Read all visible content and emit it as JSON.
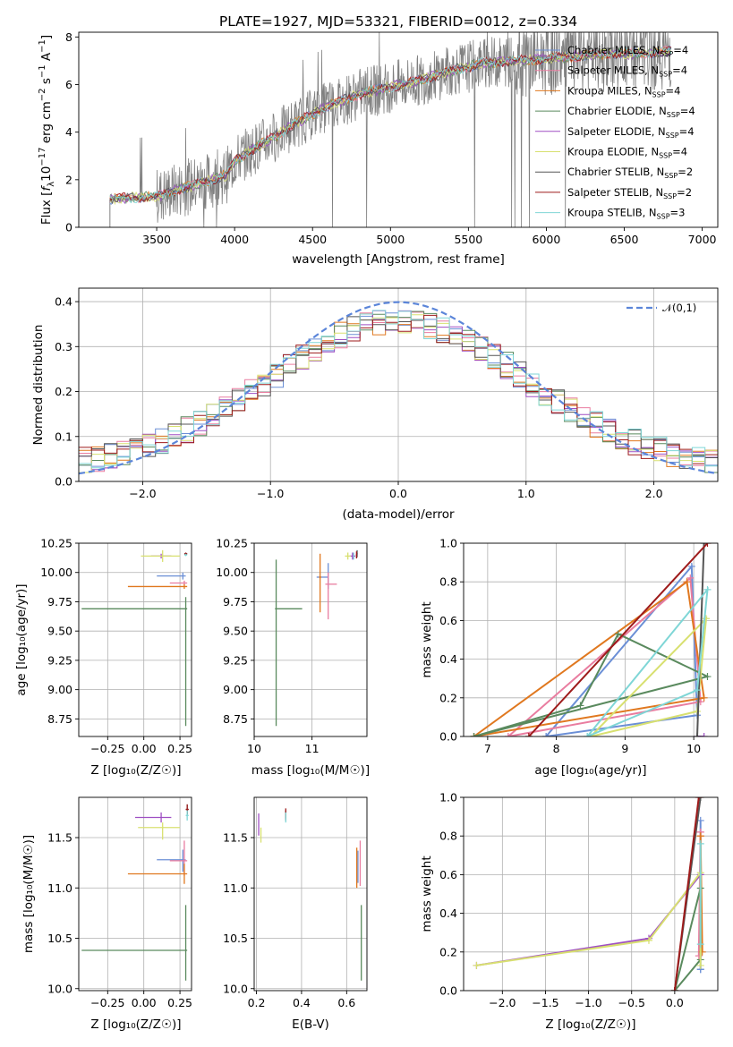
{
  "figure": {
    "title": "PLATE=1927, MJD=53321, FIBERID=0012, z=0.334"
  },
  "legend_models": [
    {
      "name": "Chabrier MILES",
      "nssp": "4",
      "color": "#6b8fd6"
    },
    {
      "name": "Salpeter MILES",
      "nssp": "4",
      "color": "#e97da0"
    },
    {
      "name": "Kroupa MILES",
      "nssp": "4",
      "color": "#e0781f"
    },
    {
      "name": "Chabrier ELODIE",
      "nssp": "4",
      "color": "#5a8a5e"
    },
    {
      "name": "Salpeter ELODIE",
      "nssp": "4",
      "color": "#9f4fc3"
    },
    {
      "name": "Kroupa ELODIE",
      "nssp": "4",
      "color": "#d8e070"
    },
    {
      "name": "Chabrier STELIB",
      "nssp": "2",
      "color": "#555555"
    },
    {
      "name": "Salpeter STELIB",
      "nssp": "2",
      "color": "#9e1b1b"
    },
    {
      "name": "Kroupa STELIB",
      "nssp": "3",
      "color": "#7fd6d6"
    }
  ],
  "chart_data": [
    {
      "id": "spectrum",
      "type": "line",
      "xlabel": "wavelength [Angstrom, rest frame]",
      "ylabel": "Flux [f_λ 10^-17 erg cm^-2 s^-1 A^-1]",
      "xlim": [
        3000,
        7100
      ],
      "ylim": [
        0,
        8.2
      ],
      "xticks": [
        3500,
        4000,
        4500,
        5000,
        5500,
        6000,
        6500,
        7000
      ],
      "yticks": [
        0,
        2,
        4,
        6,
        8
      ],
      "grid": false,
      "legend_position": "right",
      "data_range_x": [
        3200,
        6800
      ],
      "continuum_x": [
        3200,
        3500,
        3600,
        3800,
        3950,
        4000,
        4200,
        4400,
        4600,
        4800,
        5000,
        5200,
        5400,
        5600,
        5800,
        6000,
        6200,
        6400,
        6600,
        6800
      ],
      "continuum_y": [
        1.2,
        1.3,
        1.5,
        1.9,
        2.2,
        2.8,
        3.6,
        4.4,
        5.1,
        5.6,
        5.9,
        6.2,
        6.6,
        6.9,
        7.0,
        7.1,
        7.2,
        7.3,
        7.3,
        7.4
      ]
    },
    {
      "id": "residuals",
      "type": "area",
      "xlabel": "(data-model)/error",
      "ylabel": "Normed distribution",
      "xlim": [
        -2.5,
        2.5
      ],
      "ylim": [
        0,
        0.43
      ],
      "xticks": [
        -2,
        -1,
        0,
        1,
        2
      ],
      "yticks": [
        0.0,
        0.1,
        0.2,
        0.3,
        0.4
      ],
      "grid": true,
      "legend_position": "top-right",
      "reference_curve": "𝒩(0,1)",
      "reference_color": "#5b85d9"
    },
    {
      "id": "age-vs-Z",
      "type": "scatter",
      "xlabel": "Z [log₁₀(Z/Z☉)]",
      "ylabel": "age  [log₁₀(age/yr)]",
      "xlim": [
        -0.45,
        0.33
      ],
      "ylim": [
        8.6,
        10.25
      ],
      "xticks": [
        -0.25,
        0.0,
        0.25
      ],
      "yticks": [
        8.75,
        9.0,
        9.25,
        9.5,
        9.75,
        10.0,
        10.25
      ],
      "grid": true,
      "points": [
        {
          "model": 0,
          "x": 0.27,
          "y": 9.97,
          "xerr": [
            0.18,
            0.02
          ],
          "yerr": [
            0.03,
            0.03
          ]
        },
        {
          "model": 1,
          "x": 0.28,
          "y": 9.91,
          "xerr": [
            0.1,
            0.02
          ],
          "yerr": [
            0.02,
            0.02
          ]
        },
        {
          "model": 2,
          "x": 0.28,
          "y": 9.88,
          "xerr": [
            0.39,
            0.02
          ],
          "yerr": [
            0.02,
            0.02
          ]
        },
        {
          "model": 3,
          "x": 0.29,
          "y": 9.69,
          "xerr": [
            0.72,
            0.01
          ],
          "yerr": [
            1.0,
            0.1
          ]
        },
        {
          "model": 4,
          "x": 0.12,
          "y": 10.14,
          "xerr": [
            0.07,
            0.07
          ],
          "yerr": [
            0.02,
            0.02
          ]
        },
        {
          "model": 5,
          "x": 0.13,
          "y": 10.14,
          "xerr": [
            0.15,
            0.12
          ],
          "yerr": [
            0.05,
            0.05
          ]
        },
        {
          "model": 6,
          "x": 0.29,
          "y": 10.16,
          "xerr": [
            0.01,
            0.01
          ],
          "yerr": [
            0.01,
            0.01
          ]
        },
        {
          "model": 7,
          "x": 0.29,
          "y": 10.16,
          "xerr": [
            0.01,
            0.01
          ],
          "yerr": [
            0.01,
            0.01
          ]
        },
        {
          "model": 8,
          "x": 0.29,
          "y": 10.15,
          "xerr": [
            0.01,
            0.01
          ],
          "yerr": [
            0.01,
            0.01
          ]
        }
      ]
    },
    {
      "id": "age-vs-mass",
      "type": "scatter",
      "xlabel": "mass [log₁₀(M/M☉)]",
      "ylabel": "",
      "xlim": [
        10.0,
        11.95
      ],
      "ylim": [
        8.6,
        10.25
      ],
      "xticks": [
        10,
        11
      ],
      "yticks": [
        8.75,
        9.0,
        9.25,
        9.5,
        9.75,
        10.0,
        10.25
      ],
      "grid": true,
      "points": [
        {
          "model": 0,
          "x": 11.28,
          "y": 9.96,
          "xerr": [
            0.2,
            0.0
          ],
          "yerr": [
            0.1,
            0.12
          ]
        },
        {
          "model": 1,
          "x": 11.28,
          "y": 9.9,
          "xerr": [
            0.05,
            0.15
          ],
          "yerr": [
            0.3,
            0.1
          ]
        },
        {
          "model": 2,
          "x": 11.14,
          "y": 9.96,
          "xerr": [
            0.02,
            0.02
          ],
          "yerr": [
            0.3,
            0.2
          ]
        },
        {
          "model": 3,
          "x": 10.38,
          "y": 9.69,
          "xerr": [
            0.02,
            0.45
          ],
          "yerr": [
            1.0,
            0.42
          ]
        },
        {
          "model": 4,
          "x": 11.7,
          "y": 10.14,
          "xerr": [
            0.05,
            0.05
          ],
          "yerr": [
            0.03,
            0.03
          ]
        },
        {
          "model": 5,
          "x": 11.62,
          "y": 10.14,
          "xerr": [
            0.05,
            0.05
          ],
          "yerr": [
            0.03,
            0.03
          ]
        },
        {
          "model": 6,
          "x": 11.78,
          "y": 10.16,
          "xerr": [
            0.01,
            0.01
          ],
          "yerr": [
            0.03,
            0.03
          ]
        },
        {
          "model": 7,
          "x": 11.77,
          "y": 10.15,
          "xerr": [
            0.01,
            0.01
          ],
          "yerr": [
            0.03,
            0.03
          ]
        },
        {
          "model": 8,
          "x": 11.72,
          "y": 10.14,
          "xerr": [
            0.01,
            0.01
          ],
          "yerr": [
            0.03,
            0.03
          ]
        }
      ]
    },
    {
      "id": "massweight-vs-age",
      "type": "line",
      "xlabel": "age  [log₁₀(age/yr)]",
      "ylabel": "mass weight",
      "xlim": [
        6.65,
        10.35
      ],
      "ylim": [
        0.0,
        1.0
      ],
      "xticks": [
        7,
        8,
        9,
        10
      ],
      "yticks": [
        0.0,
        0.2,
        0.4,
        0.6,
        0.8,
        1.0
      ],
      "grid": true,
      "series": [
        {
          "model": 0,
          "x": [
            7.85,
            9.97,
            10.05,
            7.85
          ],
          "y": [
            0.0,
            0.88,
            0.11,
            0.0
          ]
        },
        {
          "model": 1,
          "x": [
            7.3,
            9.95,
            10.1,
            7.3
          ],
          "y": [
            0.0,
            0.82,
            0.18,
            0.0
          ]
        },
        {
          "model": 2,
          "x": [
            6.8,
            9.9,
            10.15,
            6.8
          ],
          "y": [
            0.0,
            0.8,
            0.2,
            0.0
          ]
        },
        {
          "model": 3,
          "x": [
            6.8,
            8.35,
            8.9,
            10.2,
            6.8
          ],
          "y": [
            0.0,
            0.16,
            0.53,
            0.31,
            0.0
          ]
        },
        {
          "model": 4,
          "x": [
            10.05,
            10.15
          ],
          "y": [
            0.0,
            0.0
          ]
        },
        {
          "model": 5,
          "x": [
            8.5,
            10.05,
            10.18,
            8.5
          ],
          "y": [
            0.0,
            0.13,
            0.61,
            0.0
          ]
        },
        {
          "model": 6,
          "x": [
            10.05,
            10.15
          ],
          "y": [
            0.0,
            1.0
          ]
        },
        {
          "model": 7,
          "x": [
            7.6,
            10.2,
            7.6
          ],
          "y": [
            0.0,
            1.0,
            0.0
          ]
        },
        {
          "model": 8,
          "x": [
            8.45,
            10.05,
            10.2,
            8.45
          ],
          "y": [
            0.0,
            0.24,
            0.76,
            0.0
          ]
        }
      ]
    },
    {
      "id": "mass-vs-Z",
      "type": "scatter",
      "xlabel": "Z [log₁₀(Z/Z☉)]",
      "ylabel": "mass [log₁₀(M/M☉)]",
      "xlim": [
        -0.45,
        0.33
      ],
      "ylim": [
        9.98,
        11.9
      ],
      "xticks": [
        -0.25,
        0.0,
        0.25
      ],
      "yticks": [
        10.0,
        10.5,
        11.0,
        11.5
      ],
      "grid": true,
      "points": [
        {
          "model": 0,
          "x": 0.27,
          "y": 11.28,
          "xerr": [
            0.18,
            0.02
          ],
          "yerr": [
            0.12,
            0.1
          ]
        },
        {
          "model": 1,
          "x": 0.28,
          "y": 11.27,
          "xerr": [
            0.1,
            0.02
          ],
          "yerr": [
            0.15,
            0.2
          ]
        },
        {
          "model": 2,
          "x": 0.28,
          "y": 11.14,
          "xerr": [
            0.39,
            0.02
          ],
          "yerr": [
            0.1,
            0.1
          ]
        },
        {
          "model": 3,
          "x": 0.29,
          "y": 10.38,
          "xerr": [
            0.72,
            0.01
          ],
          "yerr": [
            0.3,
            0.45
          ]
        },
        {
          "model": 4,
          "x": 0.12,
          "y": 11.7,
          "xerr": [
            0.18,
            0.07
          ],
          "yerr": [
            0.05,
            0.05
          ]
        },
        {
          "model": 5,
          "x": 0.13,
          "y": 11.6,
          "xerr": [
            0.17,
            0.12
          ],
          "yerr": [
            0.12,
            0.05
          ]
        },
        {
          "model": 6,
          "x": 0.3,
          "y": 11.78,
          "xerr": [
            0.01,
            0.01
          ],
          "yerr": [
            0.05,
            0.05
          ]
        },
        {
          "model": 7,
          "x": 0.3,
          "y": 11.78,
          "xerr": [
            0.01,
            0.01
          ],
          "yerr": [
            0.05,
            0.05
          ]
        },
        {
          "model": 8,
          "x": 0.3,
          "y": 11.72,
          "xerr": [
            0.01,
            0.01
          ],
          "yerr": [
            0.05,
            0.05
          ]
        }
      ]
    },
    {
      "id": "mass-vs-EBV",
      "type": "scatter",
      "xlabel": "E(B-V)",
      "ylabel": "",
      "xlim": [
        0.19,
        0.69
      ],
      "ylim": [
        9.98,
        11.9
      ],
      "xticks": [
        0.2,
        0.4,
        0.6
      ],
      "yticks": [
        10.0,
        10.5,
        11.0,
        11.5
      ],
      "grid": true,
      "points": [
        {
          "model": 0,
          "x": 0.65,
          "y": 11.27,
          "xerr": [
            0.0,
            0.0
          ],
          "yerr": [
            0.22,
            0.1
          ]
        },
        {
          "model": 1,
          "x": 0.66,
          "y": 11.27,
          "xerr": [
            0.0,
            0.0
          ],
          "yerr": [
            0.25,
            0.2
          ]
        },
        {
          "model": 2,
          "x": 0.645,
          "y": 11.2,
          "xerr": [
            0.0,
            0.0
          ],
          "yerr": [
            0.2,
            0.2
          ]
        },
        {
          "model": 3,
          "x": 0.665,
          "y": 10.38,
          "xerr": [
            0.0,
            0.0
          ],
          "yerr": [
            0.3,
            0.45
          ]
        },
        {
          "model": 4,
          "x": 0.21,
          "y": 11.62,
          "xerr": [
            0.0,
            0.0
          ],
          "yerr": [
            0.1,
            0.12
          ]
        },
        {
          "model": 5,
          "x": 0.22,
          "y": 11.5,
          "xerr": [
            0.0,
            0.0
          ],
          "yerr": [
            0.05,
            0.1
          ]
        },
        {
          "model": 6,
          "x": 0.33,
          "y": 11.72,
          "xerr": [
            0.0,
            0.0
          ],
          "yerr": [
            0.05,
            0.05
          ]
        },
        {
          "model": 7,
          "x": 0.33,
          "y": 11.74,
          "xerr": [
            0.0,
            0.0
          ],
          "yerr": [
            0.05,
            0.05
          ]
        },
        {
          "model": 8,
          "x": 0.33,
          "y": 11.7,
          "xerr": [
            0.0,
            0.0
          ],
          "yerr": [
            0.05,
            0.05
          ]
        }
      ]
    },
    {
      "id": "massweight-vs-Z",
      "type": "line",
      "xlabel": "Z [log₁₀(Z/Z☉)]",
      "ylabel": "mass weight",
      "xlim": [
        -2.45,
        0.5
      ],
      "ylim": [
        0.0,
        1.0
      ],
      "xticks": [
        -2.0,
        -1.5,
        -1.0,
        -0.5,
        0.0
      ],
      "yticks": [
        0.0,
        0.2,
        0.4,
        0.6,
        0.8,
        1.0
      ],
      "grid": true,
      "series": [
        {
          "model": 0,
          "x": [
            0.3,
            0.3,
            0.3
          ],
          "y": [
            0.11,
            0.88,
            0.11
          ]
        },
        {
          "model": 1,
          "x": [
            0.3,
            0.28,
            0.3
          ],
          "y": [
            0.82,
            0.18,
            0.82
          ]
        },
        {
          "model": 2,
          "x": [
            0.3,
            0.32,
            0.3
          ],
          "y": [
            0.8,
            0.2,
            0.8
          ]
        },
        {
          "model": 3,
          "x": [
            0.0,
            0.3,
            0.3,
            0.0
          ],
          "y": [
            0.0,
            0.16,
            0.53,
            0.0
          ]
        },
        {
          "model": 4,
          "x": [
            -2.3,
            -0.3,
            0.3
          ],
          "y": [
            0.13,
            0.27,
            0.6
          ]
        },
        {
          "model": 5,
          "x": [
            -2.3,
            -0.3,
            0.3,
            0.3
          ],
          "y": [
            0.13,
            0.26,
            0.61,
            0.13
          ]
        },
        {
          "model": 6,
          "x": [
            0.0,
            0.3
          ],
          "y": [
            0.0,
            1.0
          ]
        },
        {
          "model": 7,
          "x": [
            0.0,
            0.28
          ],
          "y": [
            0.0,
            1.0
          ]
        },
        {
          "model": 8,
          "x": [
            0.3,
            0.3
          ],
          "y": [
            0.24,
            0.76
          ]
        }
      ]
    }
  ]
}
